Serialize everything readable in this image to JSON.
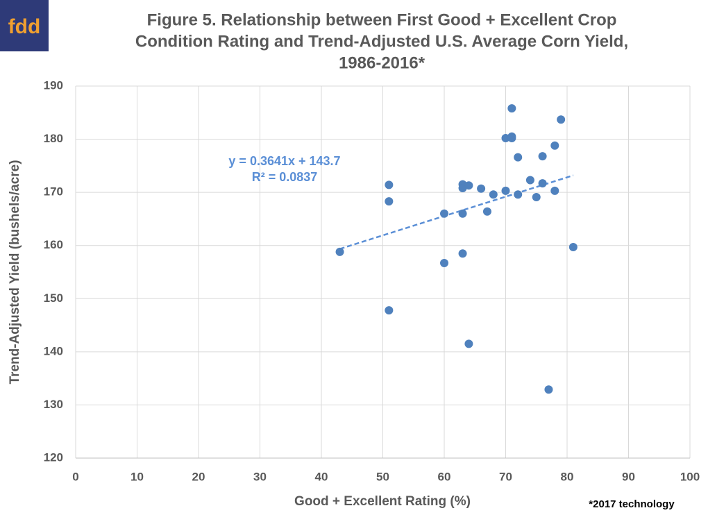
{
  "logo": "fdd",
  "note": "*2017 technology",
  "chart_data": {
    "type": "scatter",
    "title": [
      "Figure 5. Relationship between First Good + Excellent Crop",
      "Condition Rating and Trend-Adjusted U.S. Average Corn Yield,",
      "1986-2016*"
    ],
    "x_label": "Good + Excellent Rating (%)",
    "y_label": "Trend-Adjusted Yield (bushels/acre)",
    "color": "#4f81bd",
    "x": [
      43,
      51,
      51,
      51,
      60,
      60,
      63,
      63,
      63,
      63,
      64,
      64,
      66,
      67,
      68,
      70,
      70,
      71,
      71,
      71,
      72,
      72,
      74,
      75,
      76,
      76,
      77,
      78,
      78,
      79,
      81
    ],
    "values": [
      158.8,
      171.4,
      168.3,
      147.8,
      166.0,
      156.7,
      171.5,
      170.8,
      166.0,
      158.5,
      171.3,
      141.5,
      170.7,
      166.4,
      169.6,
      170.3,
      180.2,
      185.8,
      180.5,
      180.2,
      176.6,
      169.6,
      172.3,
      169.1,
      176.8,
      171.7,
      132.9,
      178.8,
      170.3,
      183.7,
      159.7
    ],
    "trendline": {
      "slope": 0.3641,
      "intercept": 143.7,
      "color": "#5b8fd6",
      "annotation": [
        "y = 0.3641x + 143.7",
        "R² = 0.0837"
      ]
    },
    "xlim": [
      0,
      100
    ],
    "xticks": [
      0,
      10,
      20,
      30,
      40,
      50,
      60,
      70,
      80,
      90,
      100
    ],
    "ylim": [
      120,
      190
    ],
    "yticks": [
      120,
      130,
      140,
      150,
      160,
      170,
      180,
      190
    ],
    "grid": true
  }
}
